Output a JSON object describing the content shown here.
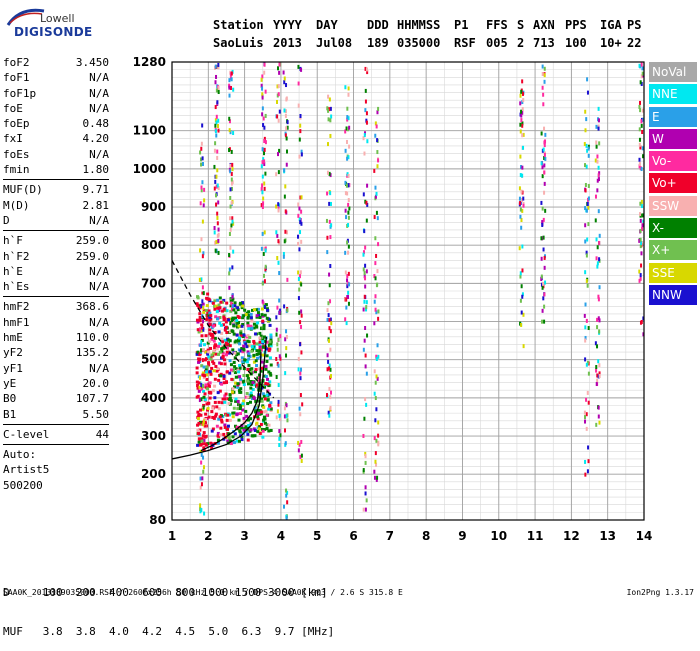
{
  "logo": {
    "line1": "Lowell",
    "line2": "DIGISONDE"
  },
  "header": {
    "columns": [
      "Station",
      "YYYY",
      "DAY",
      "DDD",
      "HHMMSS",
      "P1",
      "FFS",
      "S",
      "AXN",
      "PPS",
      "IGA",
      "PS"
    ],
    "values": [
      "SaoLuis",
      "2013",
      "Jul08",
      "189",
      "035000",
      "RSF",
      "005",
      "2",
      "713",
      "100",
      "10+",
      "22"
    ]
  },
  "params_group1": [
    {
      "label": "foF2",
      "value": "3.450"
    },
    {
      "label": "foF1",
      "value": "N/A"
    },
    {
      "label": "foF1p",
      "value": "N/A"
    },
    {
      "label": "foE",
      "value": "N/A"
    },
    {
      "label": "foEp",
      "value": "0.48"
    },
    {
      "label": "fxI",
      "value": "4.20"
    },
    {
      "label": "foEs",
      "value": "N/A"
    },
    {
      "label": "fmin",
      "value": "1.80"
    }
  ],
  "params_group2": [
    {
      "label": "MUF(D)",
      "value": "9.71"
    },
    {
      "label": "M(D)",
      "value": "2.81"
    },
    {
      "label": "D",
      "value": "N/A"
    }
  ],
  "params_group3": [
    {
      "label": "h`F",
      "value": "259.0"
    },
    {
      "label": "h`F2",
      "value": "259.0"
    },
    {
      "label": "h`E",
      "value": "N/A"
    },
    {
      "label": "h`Es",
      "value": "N/A"
    }
  ],
  "params_group4": [
    {
      "label": "hmF2",
      "value": "368.6"
    },
    {
      "label": "hmF1",
      "value": "N/A"
    },
    {
      "label": "hmE",
      "value": "110.0"
    },
    {
      "label": "yF2",
      "value": "135.2"
    },
    {
      "label": "yF1",
      "value": "N/A"
    },
    {
      "label": "yE",
      "value": "20.0"
    },
    {
      "label": "B0",
      "value": "107.7"
    },
    {
      "label": "B1",
      "value": "5.50"
    }
  ],
  "params_group5": [
    {
      "label": "C-level",
      "value": "44"
    }
  ],
  "autoscale": {
    "line1": "Auto:",
    "line2": "Artist5",
    "line3": "500200"
  },
  "legend": [
    {
      "label": "NoVal",
      "color": "#a8a8a8"
    },
    {
      "label": "NNE",
      "color": "#00e8f0"
    },
    {
      "label": "E",
      "color": "#2aa0e8"
    },
    {
      "label": "W",
      "color": "#b000b0"
    },
    {
      "label": "Vo-",
      "color": "#ff2aa0"
    },
    {
      "label": "Vo+",
      "color": "#f0002a"
    },
    {
      "label": "SSW",
      "color": "#f8b0b0"
    },
    {
      "label": "X-",
      "color": "#008000"
    },
    {
      "label": "X+",
      "color": "#70c050"
    },
    {
      "label": "SSE",
      "color": "#d8d800"
    },
    {
      "label": "NNW",
      "color": "#1a10d0"
    }
  ],
  "muf_table": {
    "d_label": "D",
    "d_values": [
      "100",
      "200",
      "400",
      "600",
      "800",
      "1000",
      "1500",
      "3000"
    ],
    "d_unit": "[km]",
    "muf_label": "MUF",
    "muf_values": [
      "3.8",
      "3.8",
      "4.0",
      "4.2",
      "4.5",
      "5.0",
      "6.3",
      "9.7"
    ],
    "muf_unit": "[MHz]"
  },
  "footer": "SAA0K_2013189035000.RSF / 260fx256h 50 kHz 5.0 km / DPS-4 SAA0K 903 / 2.6 S 315.8 E",
  "version": "Ion2Png 1.3.17",
  "chart_data": {
    "type": "scatter",
    "title": "",
    "xlabel": "",
    "ylabel": "",
    "xlim": [
      1,
      14
    ],
    "ylim": [
      80,
      1280
    ],
    "x_ticks": [
      1,
      2,
      3,
      4,
      5,
      6,
      7,
      8,
      9,
      10,
      11,
      12,
      13,
      14
    ],
    "y_ticks": [
      80,
      200,
      300,
      400,
      500,
      600,
      700,
      800,
      900,
      1000,
      1100,
      1280
    ],
    "grid": true,
    "legend_position": "right",
    "series": [
      {
        "name": "profile",
        "color": "#000000",
        "x": [
          1.8,
          2.1,
          2.4,
          2.7,
          3.0,
          3.2,
          3.35,
          3.42,
          3.45
        ],
        "y": [
          262,
          275,
          292,
          312,
          335,
          360,
          392,
          440,
          520
        ]
      },
      {
        "name": "O-trace",
        "color": "#000000",
        "x": [
          1.0,
          1.5,
          2.0,
          2.5,
          2.9,
          3.2,
          3.4,
          3.5,
          3.6
        ],
        "y": [
          240,
          250,
          262,
          278,
          300,
          330,
          380,
          450,
          560
        ]
      },
      {
        "name": "dashed",
        "color": "#000000",
        "x": [
          1.0,
          1.5,
          2.0,
          2.5,
          3.0,
          3.5,
          3.8
        ],
        "y": [
          760,
          670,
          590,
          530,
          480,
          430,
          400
        ]
      }
    ]
  }
}
